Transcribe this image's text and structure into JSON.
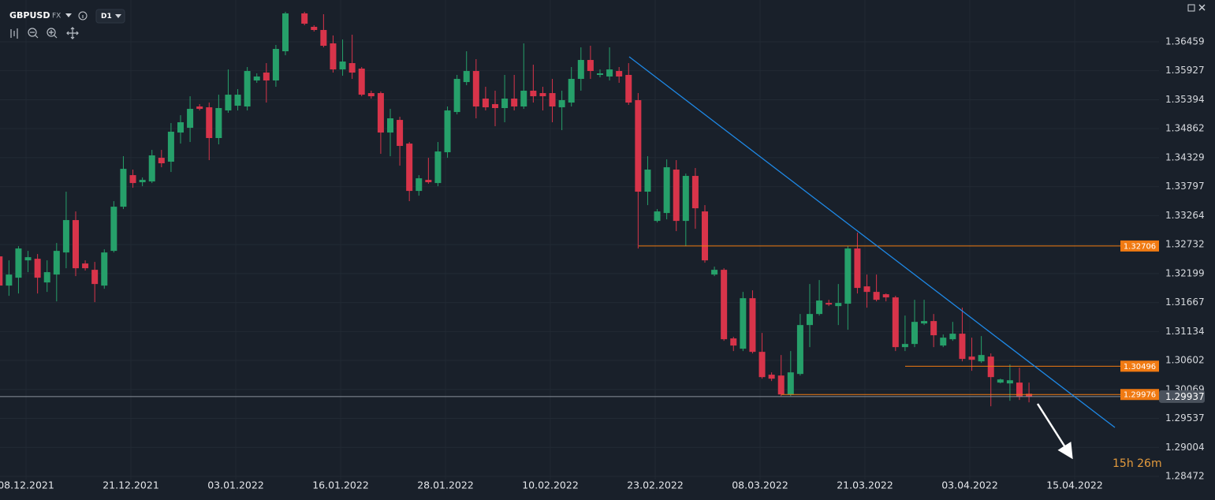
{
  "chart_data": {
    "type": "candlestick",
    "symbol": "GBPUSD",
    "market": "FX",
    "timeframe": "D1",
    "up_color": "#26a06a",
    "down_color": "#d8344a",
    "open": [
      1.32515,
      1.31978,
      1.32123,
      1.32442,
      1.32471,
      1.32036,
      1.32181,
      1.32587,
      1.33182,
      1.32384,
      1.32268,
      1.31978,
      1.32616,
      1.33428,
      1.34008,
      1.33878,
      1.33892,
      1.34327,
      1.34255,
      1.34791,
      1.34878,
      1.3527,
      1.35255,
      1.3469,
      1.35197,
      1.35284,
      1.3527,
      1.35748,
      1.35893,
      1.35748,
      1.36285,
      null,
      1.36981,
      1.36734,
      1.36676,
      1.3643,
      1.35951,
      1.36067,
      1.35966,
      1.35516,
      1.35516,
      1.34791,
      1.35023,
      1.34588,
      1.33718,
      1.33921,
      1.33863,
      1.34429,
      1.35168,
      1.35719,
      1.35922,
      1.35415,
      1.35313,
      1.35241,
      1.35415,
      1.3527,
      1.3556,
      1.35516,
      1.35516,
      1.35255,
      1.35342,
      1.35777,
      1.36125,
      1.3585,
      1.35821,
      1.35922,
      1.3585,
      1.35386,
      1.33704,
      1.33167,
      1.33312,
      1.3411,
      1.33167,
      1.33994,
      1.33341,
      1.32181,
      1.32268,
      1.31007,
      1.30818,
      1.31746,
      1.3076,
      1.3034,
      1.30325,
      1.29977,
      1.30354,
      1.31253,
      1.31456,
      1.31659,
      1.31601,
      1.31645,
      1.3266,
      1.31964,
      1.31862,
      1.31819,
      1.31761,
      1.30847,
      1.30905,
      1.31282,
      1.31326,
      1.30876,
      1.30992,
      1.31094,
      1.30673,
      1.30586,
      1.30673,
      1.30195,
      1.3018,
      1.30195,
      1.2999
    ],
    "high": [
      1.32703,
      1.32442,
      1.32703,
      1.32616,
      1.32558,
      1.32442,
      1.32761,
      1.33704,
      1.33341,
      1.32442,
      1.32413,
      1.32645,
      1.3353,
      1.34356,
      1.3411,
      1.33965,
      1.34472,
      1.34472,
      1.34965,
      1.3511,
      1.35458,
      1.35313,
      1.35342,
      1.35487,
      1.35951,
      1.35589,
      1.35995,
      1.35879,
      1.36067,
      1.36401,
      1.3701,
      null,
      1.3701,
      1.36763,
      1.36966,
      1.36575,
      1.36502,
      1.36589,
      1.35995,
      1.3556,
      1.35545,
      1.35226,
      1.35081,
      1.34617,
      1.34008,
      1.34327,
      1.34617,
      1.3527,
      1.3585,
      1.36285,
      1.3614,
      1.35632,
      1.3556,
      1.3585,
      1.3585,
      1.3643,
      1.36038,
      1.35632,
      1.35777,
      1.3556,
      1.35995,
      1.36357,
      1.36386,
      1.35951,
      1.36357,
      1.35995,
      1.36067,
      1.35516,
      1.34356,
      1.33385,
      1.34298,
      1.34284,
      1.34037,
      1.34139,
      1.33457,
      1.32326,
      1.32297,
      1.31036,
      1.31862,
      1.31891,
      1.31108,
      1.30383,
      1.30702,
      1.30775,
      1.31456,
      1.32007,
      1.3208,
      1.31717,
      1.32007,
      1.32703,
      1.3295,
      1.32181,
      1.32181,
      1.31833,
      1.3179,
      1.31427,
      1.31717,
      1.31717,
      1.31456,
      1.31079,
      1.31311,
      1.31572,
      1.31021,
      1.3105,
      1.30731,
      1.30267,
      1.30528,
      1.3047,
      1.30195
    ],
    "low": [
      1.31572,
      1.3179,
      1.31833,
      1.32225,
      1.31833,
      1.31862,
      1.31688,
      1.32297,
      1.32152,
      1.32254,
      1.31674,
      1.3192,
      1.32587,
      1.33385,
      1.33776,
      1.33805,
      1.33863,
      1.34153,
      1.34066,
      1.34588,
      1.34617,
      1.35197,
      1.34284,
      1.34574,
      1.35154,
      1.35197,
      1.35197,
      1.35705,
      1.35342,
      1.35632,
      1.36212,
      null,
      1.36763,
      1.36647,
      1.36357,
      1.35893,
      1.35835,
      1.35777,
      1.35458,
      1.35415,
      1.344,
      1.34356,
      1.34182,
      1.3353,
      1.33631,
      1.33849,
      1.33805,
      1.34327,
      1.35125,
      1.35661,
      1.35052,
      1.35197,
      1.34907,
      1.3498,
      1.35197,
      1.35226,
      1.35342,
      1.35197,
      1.3498,
      1.34835,
      1.3527,
      1.3556,
      1.35777,
      1.35806,
      1.35748,
      1.35705,
      1.35299,
      1.3266,
      1.33457,
      1.33138,
      1.33196,
      1.32979,
      1.32703,
      1.33022,
      1.32399,
      1.32152,
      1.30963,
      1.30775,
      1.30775,
      1.30731,
      1.30267,
      1.30224,
      1.29948,
      1.29948,
      1.30325,
      1.30847,
      1.31427,
      1.31601,
      1.31253,
      1.31166,
      1.31833,
      1.31572,
      1.31688,
      1.31688,
      1.30775,
      1.30775,
      1.30847,
      1.31253,
      1.30847,
      1.30847,
      1.30963,
      1.30586,
      1.30412,
      1.30557,
      1.2976,
      1.3018,
      1.29861,
      1.29876,
      1.29832
    ],
    "close": [
      1.31978,
      1.32181,
      1.3266,
      1.325,
      1.32123,
      1.32225,
      1.32616,
      1.33182,
      1.32297,
      1.32297,
      1.32007,
      1.32587,
      1.33428,
      1.34124,
      1.33863,
      1.33921,
      1.34371,
      1.34226,
      1.34806,
      1.3498,
      1.35226,
      1.35226,
      1.3469,
      1.35241,
      1.35487,
      1.35487,
      1.35922,
      1.35821,
      1.35748,
      1.36328,
      1.36981,
      null,
      1.36792,
      1.36676,
      1.36386,
      1.35951,
      1.36096,
      1.35893,
      1.35487,
      1.35458,
      1.34791,
      1.35052,
      1.34545,
      1.33718,
      1.3395,
      1.33878,
      1.34443,
      1.35197,
      1.35777,
      1.35922,
      1.3527,
      1.35255,
      1.35241,
      1.35415,
      1.3527,
      1.3556,
      1.35458,
      1.35458,
      1.3527,
      1.35386,
      1.35777,
      1.36125,
      1.35922,
      1.35879,
      1.35951,
      1.35821,
      1.35342,
      1.33704,
      1.3411,
      1.33341,
      1.34153,
      1.33167,
      1.33994,
      1.33399,
      1.32442,
      1.32268,
      1.30992,
      1.30876,
      1.31746,
      1.3076,
      1.30296,
      1.30267,
      1.29977,
      1.30383,
      1.31253,
      1.31456,
      1.31703,
      1.3163,
      1.31659,
      1.3266,
      1.31935,
      1.31862,
      1.31717,
      1.31761,
      1.30847,
      1.30905,
      1.31311,
      1.31326,
      1.31065,
      1.31021,
      1.31094,
      1.3063,
      1.30615,
      1.30702,
      1.30296,
      1.30253,
      1.30238,
      1.29934,
      1.29937
    ],
    "ylim": [
      1.28472,
      1.37227
    ],
    "yticks": [
      1.36459,
      1.35927,
      1.35394,
      1.34862,
      1.34329,
      1.33797,
      1.33264,
      1.32732,
      1.32199,
      1.31667,
      1.31134,
      1.30602,
      1.30069,
      1.29537,
      1.29004,
      1.28472
    ],
    "xlim": [
      0.06,
      121.64
    ],
    "xticks": [
      {
        "value": 2.79,
        "label": "08.12.2021"
      },
      {
        "value": 13.79,
        "label": "21.12.2021"
      },
      {
        "value": 24.79,
        "label": "03.01.2022"
      },
      {
        "value": 35.79,
        "label": "16.01.2022"
      },
      {
        "value": 46.79,
        "label": "28.01.2022"
      },
      {
        "value": 57.79,
        "label": "10.02.2022"
      },
      {
        "value": 68.79,
        "label": "23.02.2022"
      },
      {
        "value": 79.79,
        "label": "08.03.2022"
      },
      {
        "value": 90.79,
        "label": "21.03.2022"
      },
      {
        "value": 101.79,
        "label": "03.04.2022"
      },
      {
        "value": 112.79,
        "label": "15.04.2022"
      }
    ],
    "grid": true,
    "levels": [
      1.32706,
      1.30496,
      1.29976
    ],
    "level_color": "#f07a12",
    "current_price": 1.29937,
    "countdown": "15h 26m"
  }
}
